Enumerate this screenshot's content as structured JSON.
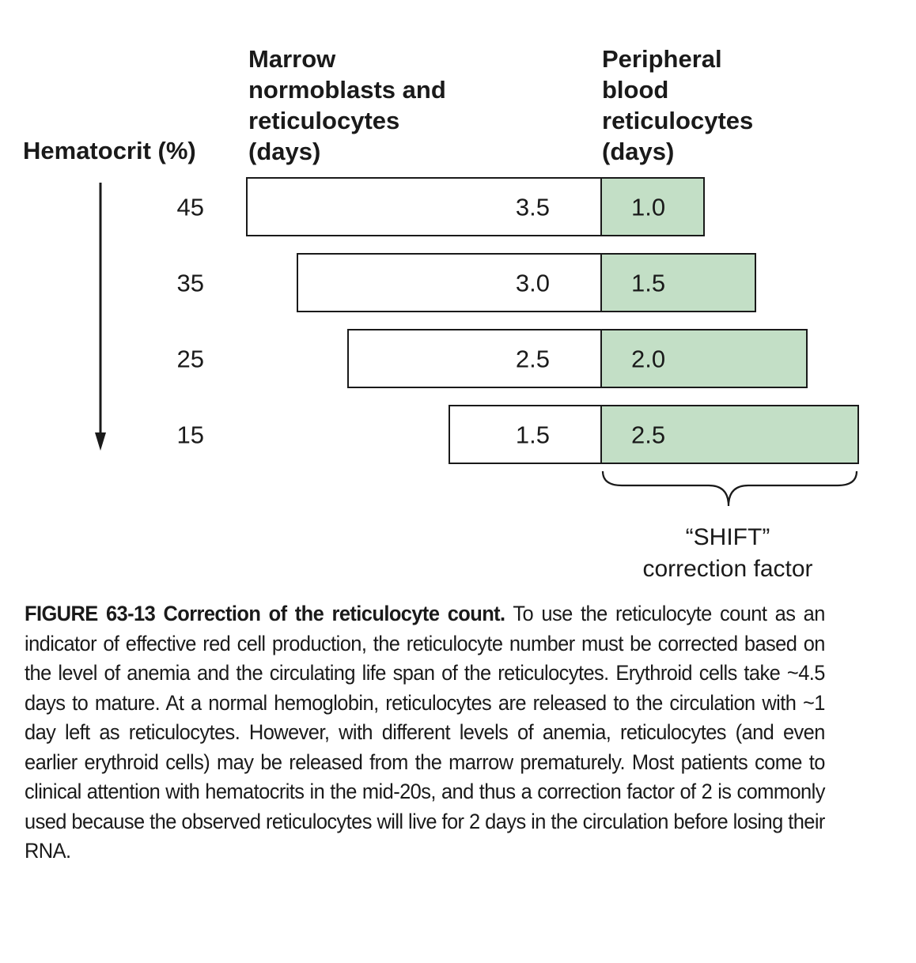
{
  "headers": {
    "hematocrit": "Hematocrit (%)",
    "marrow": [
      "Marrow",
      "normoblasts and",
      "reticulocytes",
      "(days)"
    ],
    "peripheral": [
      "Peripheral",
      "blood",
      "reticulocytes",
      "(days)"
    ]
  },
  "rows": [
    {
      "hematocrit": "45",
      "marrow_days": 3.5,
      "marrow_label": "3.5",
      "peripheral_days": 1.0,
      "peripheral_label": "1.0"
    },
    {
      "hematocrit": "35",
      "marrow_days": 3.0,
      "marrow_label": "3.0",
      "peripheral_days": 1.5,
      "peripheral_label": "1.5"
    },
    {
      "hematocrit": "25",
      "marrow_days": 2.5,
      "marrow_label": "2.5",
      "peripheral_days": 2.0,
      "peripheral_label": "2.0"
    },
    {
      "hematocrit": "15",
      "marrow_days": 1.5,
      "marrow_label": "1.5",
      "peripheral_days": 2.5,
      "peripheral_label": "2.5"
    }
  ],
  "shift_label": [
    "“SHIFT”",
    "correction factor"
  ],
  "caption": {
    "lead": "FIGURE 63-13  Correction of the reticulocyte count.",
    "body": " To use the reticulocyte count as an indicator of effective red cell production, the reticulocyte number must be corrected based on the level of anemia and the circulating life span of the reticulocytes. Erythroid cells take ~4.5 days to mature. At a normal hemoglobin, reticulocytes are released to the circulation with ~1 day left as reticulocytes. However, with different levels of anemia, reticulocytes (and even earlier erythroid cells) may be released from the marrow prematurely. Most patients come to clinical attention with hematocrits in the mid-20s, and thus a correction factor of 2 is commonly used because the observed reticulocytes will live for 2 days in the circulation before losing their RNA."
  },
  "colors": {
    "peripheral_fill": "#c3dfc6",
    "marrow_fill": "#ffffff",
    "stroke": "#1a1a1a"
  }
}
